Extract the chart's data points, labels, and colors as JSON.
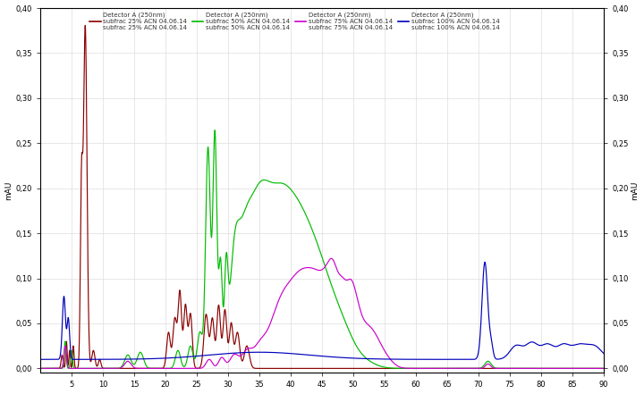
{
  "title": "",
  "xlabel": "",
  "ylabel": "mAU",
  "xlim": [
    0,
    90
  ],
  "ylim": [
    -0.005,
    0.4
  ],
  "yticks": [
    0.0,
    0.05,
    0.1,
    0.15,
    0.2,
    0.25,
    0.3,
    0.35,
    0.4
  ],
  "xticks": [
    5,
    10,
    15,
    20,
    25,
    30,
    35,
    40,
    45,
    50,
    55,
    60,
    65,
    70,
    75,
    80,
    85,
    90
  ],
  "background_color": "#ffffff",
  "plot_bg_color": "#ffffff",
  "grid_color": "#dddddd",
  "series": [
    {
      "label": "subfrac 25% ACN 04.06.14",
      "color": "#8B0000",
      "legend_header": "Detector A (250nm)"
    },
    {
      "label": "subfrac 50% ACN 04.06.14",
      "color": "#00bb00",
      "legend_header": "Detector A (250nm)"
    },
    {
      "label": "subfrac 75% ACN 04.06.14",
      "color": "#cc00cc",
      "legend_header": "Detector A (250nm)"
    },
    {
      "label": "subfrac 100% ACN 04.06.14",
      "color": "#0000bb",
      "legend_header": "Detector A (250nm)"
    }
  ]
}
